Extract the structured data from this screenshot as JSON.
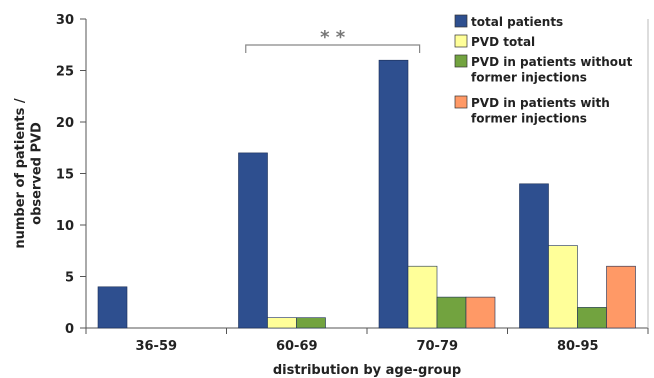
{
  "chart_data": {
    "type": "bar",
    "xlabel": "distribution by age-group",
    "ylabel_lines": [
      "number of patients /",
      "observed PVD"
    ],
    "ylim": [
      0,
      30
    ],
    "yticks": [
      0,
      5,
      10,
      15,
      20,
      25,
      30
    ],
    "categories": [
      "36-59",
      "60-69",
      "70-79",
      "80-95"
    ],
    "series": [
      {
        "name": "total patients",
        "color": "#2e4f8f",
        "values": [
          4,
          17,
          26,
          14
        ]
      },
      {
        "name": "PVD total",
        "color": "#ffff99",
        "values": [
          0,
          1,
          6,
          8
        ]
      },
      {
        "name": "PVD in patients without former injections",
        "name_lines": [
          "PVD in patients without",
          "former injections"
        ],
        "color": "#72a33f",
        "values": [
          0,
          1,
          3,
          2
        ]
      },
      {
        "name": "PVD in patients with former injections",
        "name_lines": [
          "PVD in patients with",
          "former injections"
        ],
        "color": "#ff9966",
        "values": [
          0,
          0,
          3,
          6
        ]
      }
    ],
    "legend_position": "top-right",
    "grid": false,
    "annotation": {
      "text": "* *",
      "from_category": "60-69",
      "to_category": "70-79"
    }
  }
}
